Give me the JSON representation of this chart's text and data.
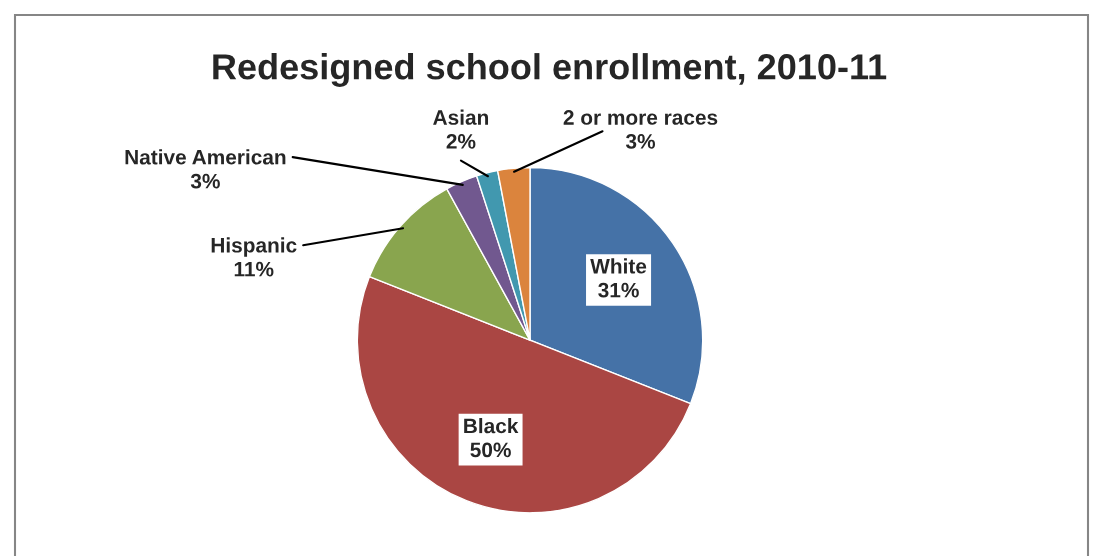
{
  "chart_data": {
    "type": "pie",
    "title": "Redesigned school enrollment, 2010-11",
    "categories": [
      "White",
      "Black",
      "Hispanic",
      "Native American",
      "Asian",
      "2 or more races"
    ],
    "values": [
      31,
      50,
      11,
      3,
      2,
      3
    ],
    "value_labels": [
      "31%",
      "50%",
      "11%",
      "3%",
      "2%",
      "3%"
    ],
    "colors": [
      "#4572a7",
      "#aa4643",
      "#89a54e",
      "#71588f",
      "#4198af",
      "#db843d"
    ],
    "legend": false
  }
}
